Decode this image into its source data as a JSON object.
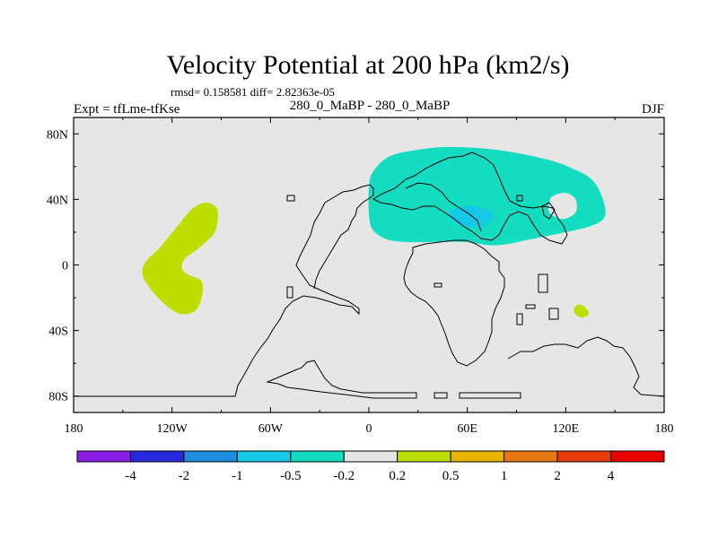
{
  "chart_data": {
    "type": "filled-contour-map",
    "title": "Velocity Potential at 200 hPa (km2/s)",
    "stats_text": "rmsd= 0.158581  diff= 2.82363e-05",
    "left_label": "Expt = tfLme-tfKse",
    "center_label": "280_0_MaBP - 280_0_MaBP",
    "right_label": "DJF",
    "x_range": [
      -180,
      180
    ],
    "y_range": [
      -90,
      90
    ],
    "x_ticks": [
      {
        "value": -180,
        "label": "180"
      },
      {
        "value": -120,
        "label": "120W"
      },
      {
        "value": -60,
        "label": "60W"
      },
      {
        "value": 0,
        "label": "0"
      },
      {
        "value": 60,
        "label": "60E"
      },
      {
        "value": 120,
        "label": "120E"
      },
      {
        "value": 180,
        "label": "180"
      }
    ],
    "y_ticks": [
      {
        "value": 80,
        "label": "80N"
      },
      {
        "value": 40,
        "label": "40N"
      },
      {
        "value": 0,
        "label": "0"
      },
      {
        "value": -40,
        "label": "40S"
      },
      {
        "value": -80,
        "label": "80S"
      }
    ],
    "colorbar": {
      "levels": [
        "-4",
        "-2",
        "-1",
        "-0.5",
        "-0.2",
        "0.2",
        "0.5",
        "1",
        "2",
        "4"
      ],
      "colors": [
        "#8a1ee6",
        "#2828dc",
        "#1e8cdc",
        "#14c8e6",
        "#14dcc0",
        "#e6e6e6",
        "#bede00",
        "#e6b400",
        "#e67814",
        "#e63c0a",
        "#e60000"
      ]
    },
    "regions": [
      {
        "name": "positive anomaly over eastern Pacific",
        "range": "0.2 to 0.5",
        "color": "#bede00",
        "points": [
          [
            -100,
            38
          ],
          [
            -94,
            36
          ],
          [
            -92,
            32
          ],
          [
            -94,
            20
          ],
          [
            -104,
            10
          ],
          [
            -112,
            4
          ],
          [
            -114,
            -2
          ],
          [
            -110,
            -6
          ],
          [
            -102,
            -10
          ],
          [
            -102,
            -20
          ],
          [
            -106,
            -28
          ],
          [
            -114,
            -30
          ],
          [
            -122,
            -26
          ],
          [
            -132,
            -16
          ],
          [
            -138,
            -6
          ],
          [
            -136,
            2
          ],
          [
            -128,
            10
          ],
          [
            -118,
            22
          ],
          [
            -108,
            34
          ]
        ]
      },
      {
        "name": "positive anomaly over southern Indian Ocean",
        "range": "0.2 to 0.5",
        "color": "#bede00",
        "points": [
          [
            128,
            -24
          ],
          [
            132,
            -26
          ],
          [
            134,
            -30
          ],
          [
            130,
            -32
          ],
          [
            126,
            -30
          ],
          [
            125,
            -27
          ]
        ]
      },
      {
        "name": "negative anomaly over Eurasia",
        "range": "-0.5 to -0.2",
        "color": "#14dcc0",
        "points": [
          [
            2,
            56
          ],
          [
            12,
            66
          ],
          [
            28,
            70
          ],
          [
            50,
            72
          ],
          [
            80,
            70
          ],
          [
            110,
            64
          ],
          [
            126,
            58
          ],
          [
            136,
            52
          ],
          [
            142,
            42
          ],
          [
            144,
            30
          ],
          [
            136,
            24
          ],
          [
            120,
            20
          ],
          [
            100,
            16
          ],
          [
            78,
            12
          ],
          [
            58,
            14
          ],
          [
            40,
            14
          ],
          [
            22,
            14
          ],
          [
            10,
            16
          ],
          [
            2,
            22
          ],
          [
            0,
            32
          ],
          [
            0,
            46
          ]
        ]
      },
      {
        "name": "stronger negative anomaly core",
        "range": "-1 to -0.5",
        "color": "#14c8e6",
        "points": [
          [
            50,
            33
          ],
          [
            60,
            36
          ],
          [
            72,
            34
          ],
          [
            76,
            30
          ],
          [
            70,
            24
          ],
          [
            58,
            24
          ],
          [
            50,
            28
          ]
        ]
      },
      {
        "name": "zero-value hole in negative region",
        "range": "-0.2 to 0.2",
        "color": "#e6e6e6",
        "points": [
          [
            112,
            42
          ],
          [
            120,
            44
          ],
          [
            126,
            40
          ],
          [
            126,
            32
          ],
          [
            118,
            28
          ],
          [
            110,
            32
          ],
          [
            110,
            38
          ]
        ]
      }
    ]
  }
}
